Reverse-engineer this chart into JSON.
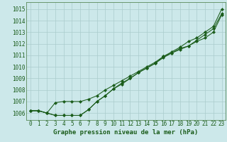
{
  "title": "Graphe pression niveau de la mer (hPa)",
  "background_color": "#cce8ea",
  "grid_color": "#aacccc",
  "line_color": "#1a5c1a",
  "spine_color": "#5a8a5a",
  "ylim": [
    1005.4,
    1015.6
  ],
  "xlim": [
    -0.5,
    23.5
  ],
  "xtick_labels": [
    "0",
    "1",
    "2",
    "3",
    "4",
    "5",
    "6",
    "7",
    "8",
    "9",
    "10",
    "11",
    "12",
    "13",
    "14",
    "15",
    "16",
    "17",
    "18",
    "19",
    "20",
    "21",
    "22",
    "23"
  ],
  "ytick_labels": [
    "1006",
    "1007",
    "1008",
    "1009",
    "1010",
    "1011",
    "1012",
    "1013",
    "1014",
    "1015"
  ],
  "ytick_vals": [
    1006,
    1007,
    1008,
    1009,
    1010,
    1011,
    1012,
    1013,
    1014,
    1015
  ],
  "xtick_vals": [
    0,
    1,
    2,
    3,
    4,
    5,
    6,
    7,
    8,
    9,
    10,
    11,
    12,
    13,
    14,
    15,
    16,
    17,
    18,
    19,
    20,
    21,
    22,
    23
  ],
  "series": [
    [
      1006.2,
      1006.2,
      1006.0,
      1005.8,
      1005.8,
      1005.8,
      1005.8,
      1006.3,
      1007.0,
      1007.5,
      1008.1,
      1008.6,
      1009.0,
      1009.5,
      1009.9,
      1010.3,
      1010.8,
      1011.2,
      1011.6,
      1011.8,
      1012.2,
      1012.5,
      1013.0,
      1014.5
    ],
    [
      1006.2,
      1006.2,
      1006.0,
      1005.8,
      1005.8,
      1005.8,
      1005.8,
      1006.3,
      1007.0,
      1007.5,
      1008.1,
      1008.5,
      1009.0,
      1009.5,
      1009.9,
      1010.3,
      1010.9,
      1011.2,
      1011.5,
      1011.8,
      1012.3,
      1012.8,
      1013.3,
      1014.6
    ],
    [
      1006.2,
      1006.2,
      1006.0,
      1006.9,
      1007.0,
      1007.0,
      1007.0,
      1007.2,
      1007.5,
      1008.0,
      1008.4,
      1008.8,
      1009.2,
      1009.6,
      1010.0,
      1010.4,
      1010.9,
      1011.3,
      1011.7,
      1012.2,
      1012.5,
      1013.0,
      1013.5,
      1015.0
    ]
  ],
  "tick_fontsize": 5.5,
  "label_fontsize": 6.5
}
